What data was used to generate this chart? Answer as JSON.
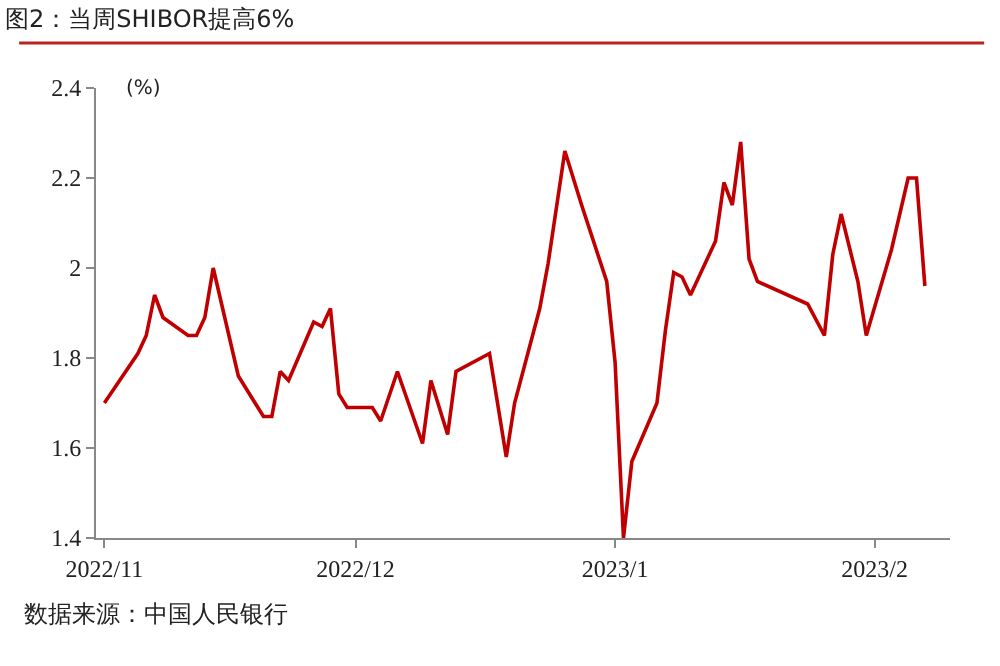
{
  "chart_data": {
    "type": "line",
    "title": "图2：当周SHIBOR提高6%",
    "ylabel": "(%)",
    "x": [
      "2022-11-01",
      "2022-11-05",
      "2022-11-06",
      "2022-11-07",
      "2022-11-08",
      "2022-11-11",
      "2022-11-12",
      "2022-11-13",
      "2022-11-14",
      "2022-11-16",
      "2022-11-17",
      "2022-11-20",
      "2022-11-21",
      "2022-11-22",
      "2022-11-23",
      "2022-11-26",
      "2022-11-27",
      "2022-11-28",
      "2022-11-29",
      "2022-11-30",
      "2022-12-03",
      "2022-12-04",
      "2022-12-06",
      "2022-12-09",
      "2022-12-10",
      "2022-12-12",
      "2022-12-13",
      "2022-12-17",
      "2022-12-19",
      "2022-12-20",
      "2022-12-23",
      "2022-12-24",
      "2022-12-26",
      "2022-12-28",
      "2022-12-31",
      "2023-01-01",
      "2023-01-02",
      "2023-01-03",
      "2023-01-06",
      "2023-01-07",
      "2023-01-08",
      "2023-01-09",
      "2023-01-10",
      "2023-01-13",
      "2023-01-14",
      "2023-01-15",
      "2023-01-16",
      "2023-01-17",
      "2023-01-18",
      "2023-01-24",
      "2023-01-26",
      "2023-01-27",
      "2023-01-28",
      "2023-01-30",
      "2023-01-31",
      "2023-02-03",
      "2023-02-05",
      "2023-02-06",
      "2023-02-07"
    ],
    "series": [
      {
        "color": "#c00000",
        "values": [
          1.7,
          1.81,
          1.85,
          1.94,
          1.89,
          1.85,
          1.85,
          1.89,
          2.0,
          1.84,
          1.76,
          1.67,
          1.67,
          1.77,
          1.75,
          1.88,
          1.87,
          1.91,
          1.72,
          1.69,
          1.69,
          1.66,
          1.77,
          1.61,
          1.75,
          1.63,
          1.77,
          1.81,
          1.58,
          1.7,
          1.91,
          2.01,
          2.26,
          2.14,
          1.97,
          1.79,
          1.4,
          1.57,
          1.7,
          1.86,
          1.99,
          1.98,
          1.94,
          2.06,
          2.19,
          2.14,
          2.28,
          2.02,
          1.97,
          1.92,
          1.85,
          2.03,
          2.12,
          1.97,
          1.85,
          2.04,
          2.2,
          2.2,
          1.96
        ]
      }
    ],
    "xlim": [
      "2022-10-31",
      "2023-02-10"
    ],
    "xticks": [
      {
        "value": "2022-11-01",
        "label": "2022/11"
      },
      {
        "value": "2022-12-01",
        "label": "2022/12"
      },
      {
        "value": "2023-01-01",
        "label": "2023/1"
      },
      {
        "value": "2023-02-01",
        "label": "2023/2"
      }
    ],
    "ylim": [
      1.4,
      2.4
    ],
    "yticks": [
      1.4,
      1.6,
      1.8,
      2,
      2.2,
      2.4
    ],
    "legend": false,
    "marker": "none",
    "line_style": "solid",
    "annotations": [
      "数据来源：中国人民银行"
    ]
  }
}
